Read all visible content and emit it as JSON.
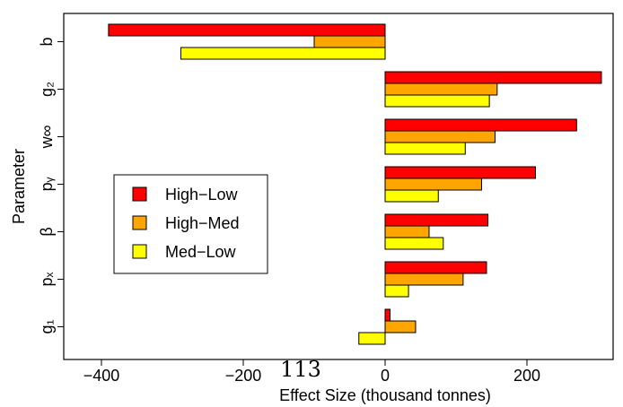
{
  "chart_data": {
    "type": "bar",
    "orientation": "horizontal",
    "title": "",
    "xlabel": "Effect Size (thousand tonnes)",
    "ylabel": "Parameter",
    "xlim": [
      -420,
      320
    ],
    "x_ticks": [
      -400,
      -200,
      0,
      200
    ],
    "x_tick_labels": [
      "−400",
      "−200",
      "0",
      "200"
    ],
    "categories": [
      "b",
      "g₂",
      "w∞",
      "pᵧ",
      "β",
      "pₓ",
      "g₁"
    ],
    "series": [
      {
        "name": "High−Low",
        "color": "#ff0000",
        "values": [
          -390,
          305,
          270,
          212,
          145,
          143,
          7
        ]
      },
      {
        "name": "High−Med",
        "color": "#ffa500",
        "values": [
          -100,
          158,
          155,
          136,
          62,
          110,
          43
        ]
      },
      {
        "name": "Med−Low",
        "color": "#ffff00",
        "values": [
          -288,
          147,
          113,
          75,
          82,
          33,
          -37
        ]
      }
    ],
    "legend_position": "middle-left",
    "grid": false
  },
  "annotation": {
    "text": "113"
  }
}
